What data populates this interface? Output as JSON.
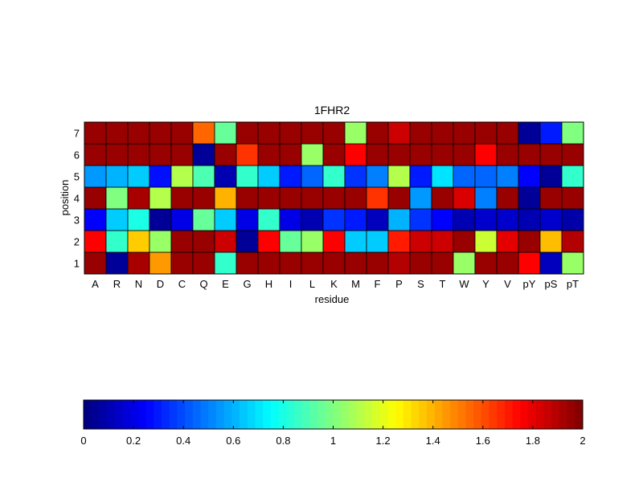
{
  "chart_data": {
    "type": "heatmap",
    "title": "1FHR2",
    "xlabel": "residue",
    "ylabel": "position",
    "x_categories": [
      "A",
      "R",
      "N",
      "D",
      "C",
      "Q",
      "E",
      "G",
      "H",
      "I",
      "L",
      "K",
      "M",
      "F",
      "P",
      "S",
      "T",
      "W",
      "Y",
      "V",
      "pY",
      "pS",
      "pT"
    ],
    "y_categories": [
      "1",
      "2",
      "3",
      "4",
      "5",
      "6",
      "7"
    ],
    "colormap": "jet",
    "clim": [
      0,
      2
    ],
    "grid": true,
    "values": [
      [
        1.95,
        0.05,
        1.92,
        1.45,
        1.95,
        1.95,
        0.85,
        1.95,
        1.95,
        1.95,
        1.95,
        1.95,
        1.95,
        1.95,
        1.9,
        1.95,
        1.95,
        1.05,
        1.95,
        1.95,
        1.75,
        0.12,
        1.05
      ],
      [
        1.75,
        0.85,
        1.35,
        1.05,
        1.95,
        1.95,
        1.85,
        0.05,
        1.75,
        0.95,
        1.05,
        1.75,
        0.65,
        0.65,
        1.7,
        1.85,
        1.85,
        1.95,
        1.15,
        1.8,
        1.95,
        1.38,
        1.9
      ],
      [
        0.25,
        0.65,
        0.8,
        0.05,
        0.2,
        0.95,
        0.65,
        0.2,
        0.85,
        0.2,
        0.1,
        0.35,
        0.3,
        0.12,
        0.6,
        0.35,
        0.25,
        0.1,
        0.15,
        0.15,
        0.1,
        0.15,
        0.08
      ],
      [
        1.95,
        1.0,
        1.92,
        1.1,
        1.95,
        1.95,
        1.4,
        1.95,
        1.95,
        1.95,
        1.95,
        1.95,
        1.95,
        1.65,
        1.95,
        0.55,
        1.95,
        1.82,
        0.5,
        1.95,
        0.05,
        1.95,
        1.95
      ],
      [
        0.55,
        0.6,
        0.65,
        0.28,
        1.1,
        0.9,
        0.1,
        0.85,
        0.65,
        0.3,
        0.45,
        0.85,
        0.35,
        0.5,
        1.1,
        0.3,
        0.7,
        0.45,
        0.45,
        0.5,
        0.25,
        0.05,
        0.85
      ],
      [
        1.95,
        1.95,
        1.95,
        1.95,
        1.95,
        0.05,
        1.95,
        1.65,
        1.95,
        1.95,
        1.05,
        1.95,
        1.75,
        1.95,
        1.95,
        1.95,
        1.95,
        1.95,
        1.75,
        1.95,
        1.95,
        1.95,
        1.95
      ],
      [
        1.95,
        1.95,
        1.95,
        1.95,
        1.95,
        1.55,
        0.95,
        1.95,
        1.95,
        1.95,
        1.95,
        1.95,
        1.05,
        1.95,
        1.85,
        1.95,
        1.95,
        1.95,
        1.95,
        1.95,
        0.05,
        0.3,
        1.0
      ]
    ],
    "colorbar": {
      "ticks": [
        0,
        0.2,
        0.4,
        0.6,
        0.8,
        1,
        1.2,
        1.4,
        1.6,
        1.8,
        2
      ],
      "tick_labels": [
        "0",
        "0.2",
        "0.4",
        "0.6",
        "0.8",
        "1",
        "1.2",
        "1.4",
        "1.6",
        "1.8",
        "2"
      ]
    }
  }
}
